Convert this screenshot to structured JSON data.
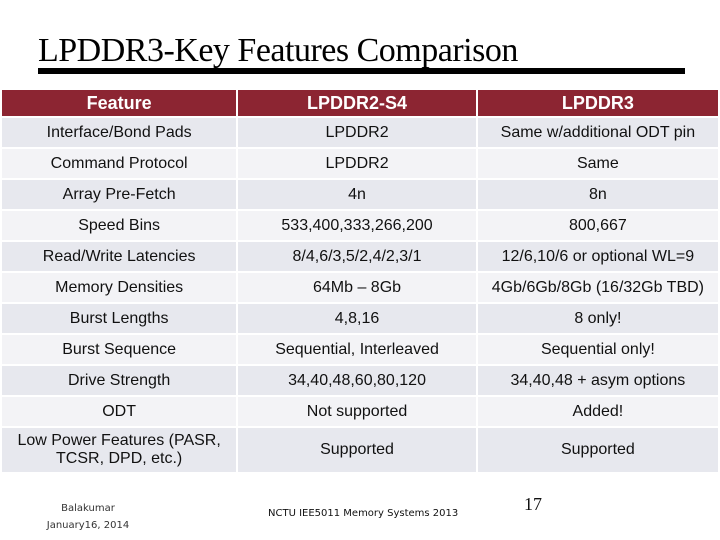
{
  "slide": {
    "title": "LPDDR3-Key Features Comparison",
    "table": {
      "headers": [
        "Feature",
        "LPDDR2-S4",
        "LPDDR3"
      ],
      "rows": [
        {
          "feature": "Interface/Bond Pads",
          "lpddr2": "LPDDR2",
          "lpddr3": "Same w/additional ODT pin"
        },
        {
          "feature": "Command Protocol",
          "lpddr2": "LPDDR2",
          "lpddr3": "Same"
        },
        {
          "feature": "Array Pre-Fetch",
          "lpddr2": "4n",
          "lpddr3": "8n"
        },
        {
          "feature": "Speed Bins",
          "lpddr2": "533,400,333,266,200",
          "lpddr3": "800,667"
        },
        {
          "feature": "Read/Write Latencies",
          "lpddr2": "8/4,6/3,5/2,4/2,3/1",
          "lpddr3": "12/6,10/6 or optional WL=9"
        },
        {
          "feature": "Memory Densities",
          "lpddr2": "64Mb – 8Gb",
          "lpddr3": "4Gb/6Gb/8Gb (16/32Gb TBD)"
        },
        {
          "feature": "Burst Lengths",
          "lpddr2": "4,8,16",
          "lpddr3": "8 only!"
        },
        {
          "feature": "Burst Sequence",
          "lpddr2": "Sequential, Interleaved",
          "lpddr3": "Sequential only!"
        },
        {
          "feature": "Drive Strength",
          "lpddr2": "34,40,48,60,80,120",
          "lpddr3": "34,40,48 + asym options"
        },
        {
          "feature": "ODT",
          "lpddr2": "Not supported",
          "lpddr3": "Added!"
        },
        {
          "feature": "Low Power Features (PASR, TCSR, DPD, etc.)",
          "lpddr2": "Supported",
          "lpddr3": "Supported"
        }
      ]
    },
    "footer": {
      "author": "Balakumar",
      "date": "January16, 2014",
      "course": "NCTU IEE5011 Memory Systems 2013",
      "page_number": "17"
    },
    "colors": {
      "header_bg": "#8c2532",
      "row_odd": "#e7e8ee",
      "row_even": "#f3f3f6"
    }
  }
}
